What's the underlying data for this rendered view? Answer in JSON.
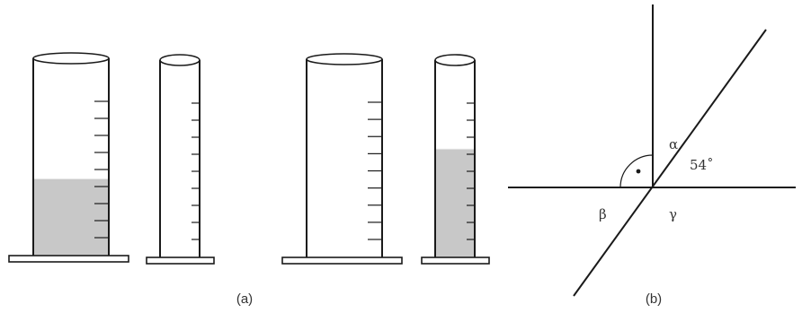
{
  "captions": {
    "a": "(a)",
    "b": "(b)"
  },
  "angles": {
    "alpha": "α",
    "beta": "β",
    "gamma": "γ",
    "given": "54˚"
  },
  "cylinders": [
    {
      "name": "wide-cylinder-1",
      "fill_fraction": 0.39
    },
    {
      "name": "narrow-cylinder-1",
      "fill_fraction": 0.0
    },
    {
      "name": "wide-cylinder-2",
      "fill_fraction": 0.0
    },
    {
      "name": "narrow-cylinder-2",
      "fill_fraction": 0.55
    }
  ],
  "colors": {
    "stroke": "#1a1a1a",
    "liquid": "#c8c8c8",
    "text": "#333333"
  }
}
